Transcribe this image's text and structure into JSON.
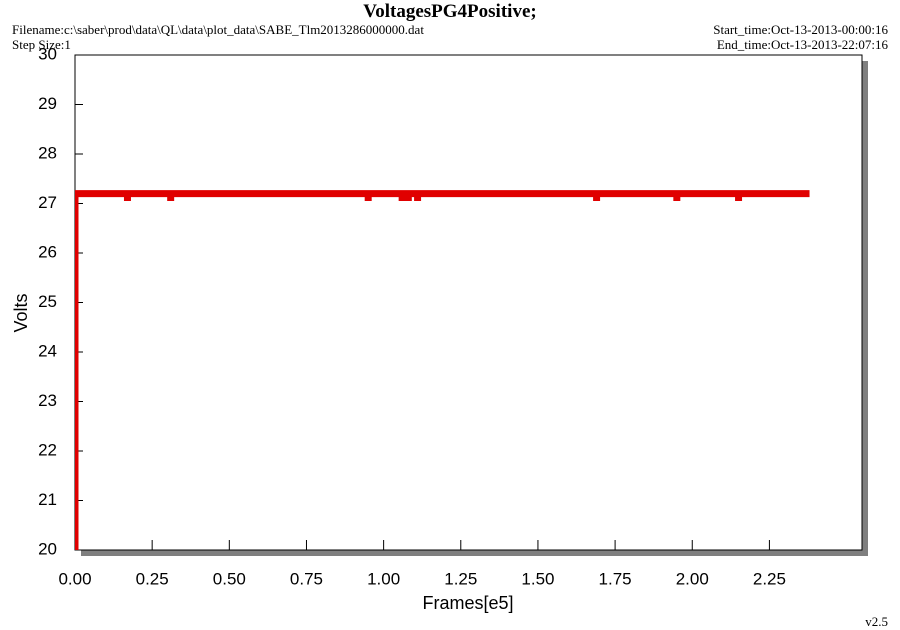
{
  "header": {
    "title": "VoltagesPG4Positive;",
    "filename": "Filename:c:\\saber\\prod\\data\\QL\\data\\plot_data\\SABE_Tlm2013286000000.dat",
    "step_size": "Step Size:1",
    "start_time": "Start_time:Oct-13-2013-00:00:16",
    "end_time": "End_time:Oct-13-2013-22:07:16",
    "version": "v2.5"
  },
  "chart_data": {
    "type": "line",
    "xlabel": "Frames[e5]",
    "ylabel": "Volts",
    "xlim": [
      0,
      2.55
    ],
    "ylim": [
      20,
      30
    ],
    "xticks": [
      {
        "value": 0,
        "label": "0.00"
      },
      0.25,
      {
        "value": 0.5,
        "label": "0.50"
      },
      0.75,
      {
        "value": 1,
        "label": "1.00"
      },
      1.25,
      {
        "value": 1.5,
        "label": "1.50"
      },
      1.75,
      {
        "value": 2,
        "label": "2.00"
      },
      2.25
    ],
    "yticks": [
      20,
      21,
      22,
      23,
      24,
      25,
      26,
      27,
      28,
      29,
      30
    ],
    "series": [
      {
        "color": "#e00000",
        "x": [
          0,
          0,
          0.17,
          0.17,
          0.17,
          0.31,
          0.31,
          0.31,
          0.95,
          0.95,
          0.95,
          1.06,
          1.06,
          1.06,
          1.08,
          1.08,
          1.08,
          1.11,
          1.11,
          1.11,
          1.69,
          1.69,
          1.69,
          1.95,
          1.95,
          1.95,
          2.15,
          2.15,
          2.15,
          2.38
        ],
        "values": [
          20,
          27.2,
          27.2,
          27.05,
          27.2,
          27.2,
          27.05,
          27.2,
          27.2,
          27.05,
          27.2,
          27.2,
          27.05,
          27.2,
          27.2,
          27.05,
          27.2,
          27.2,
          27.05,
          27.2,
          27.2,
          27.05,
          27.2,
          27.2,
          27.05,
          27.2,
          27.2,
          27.05,
          27.2,
          27.2
        ]
      }
    ]
  }
}
